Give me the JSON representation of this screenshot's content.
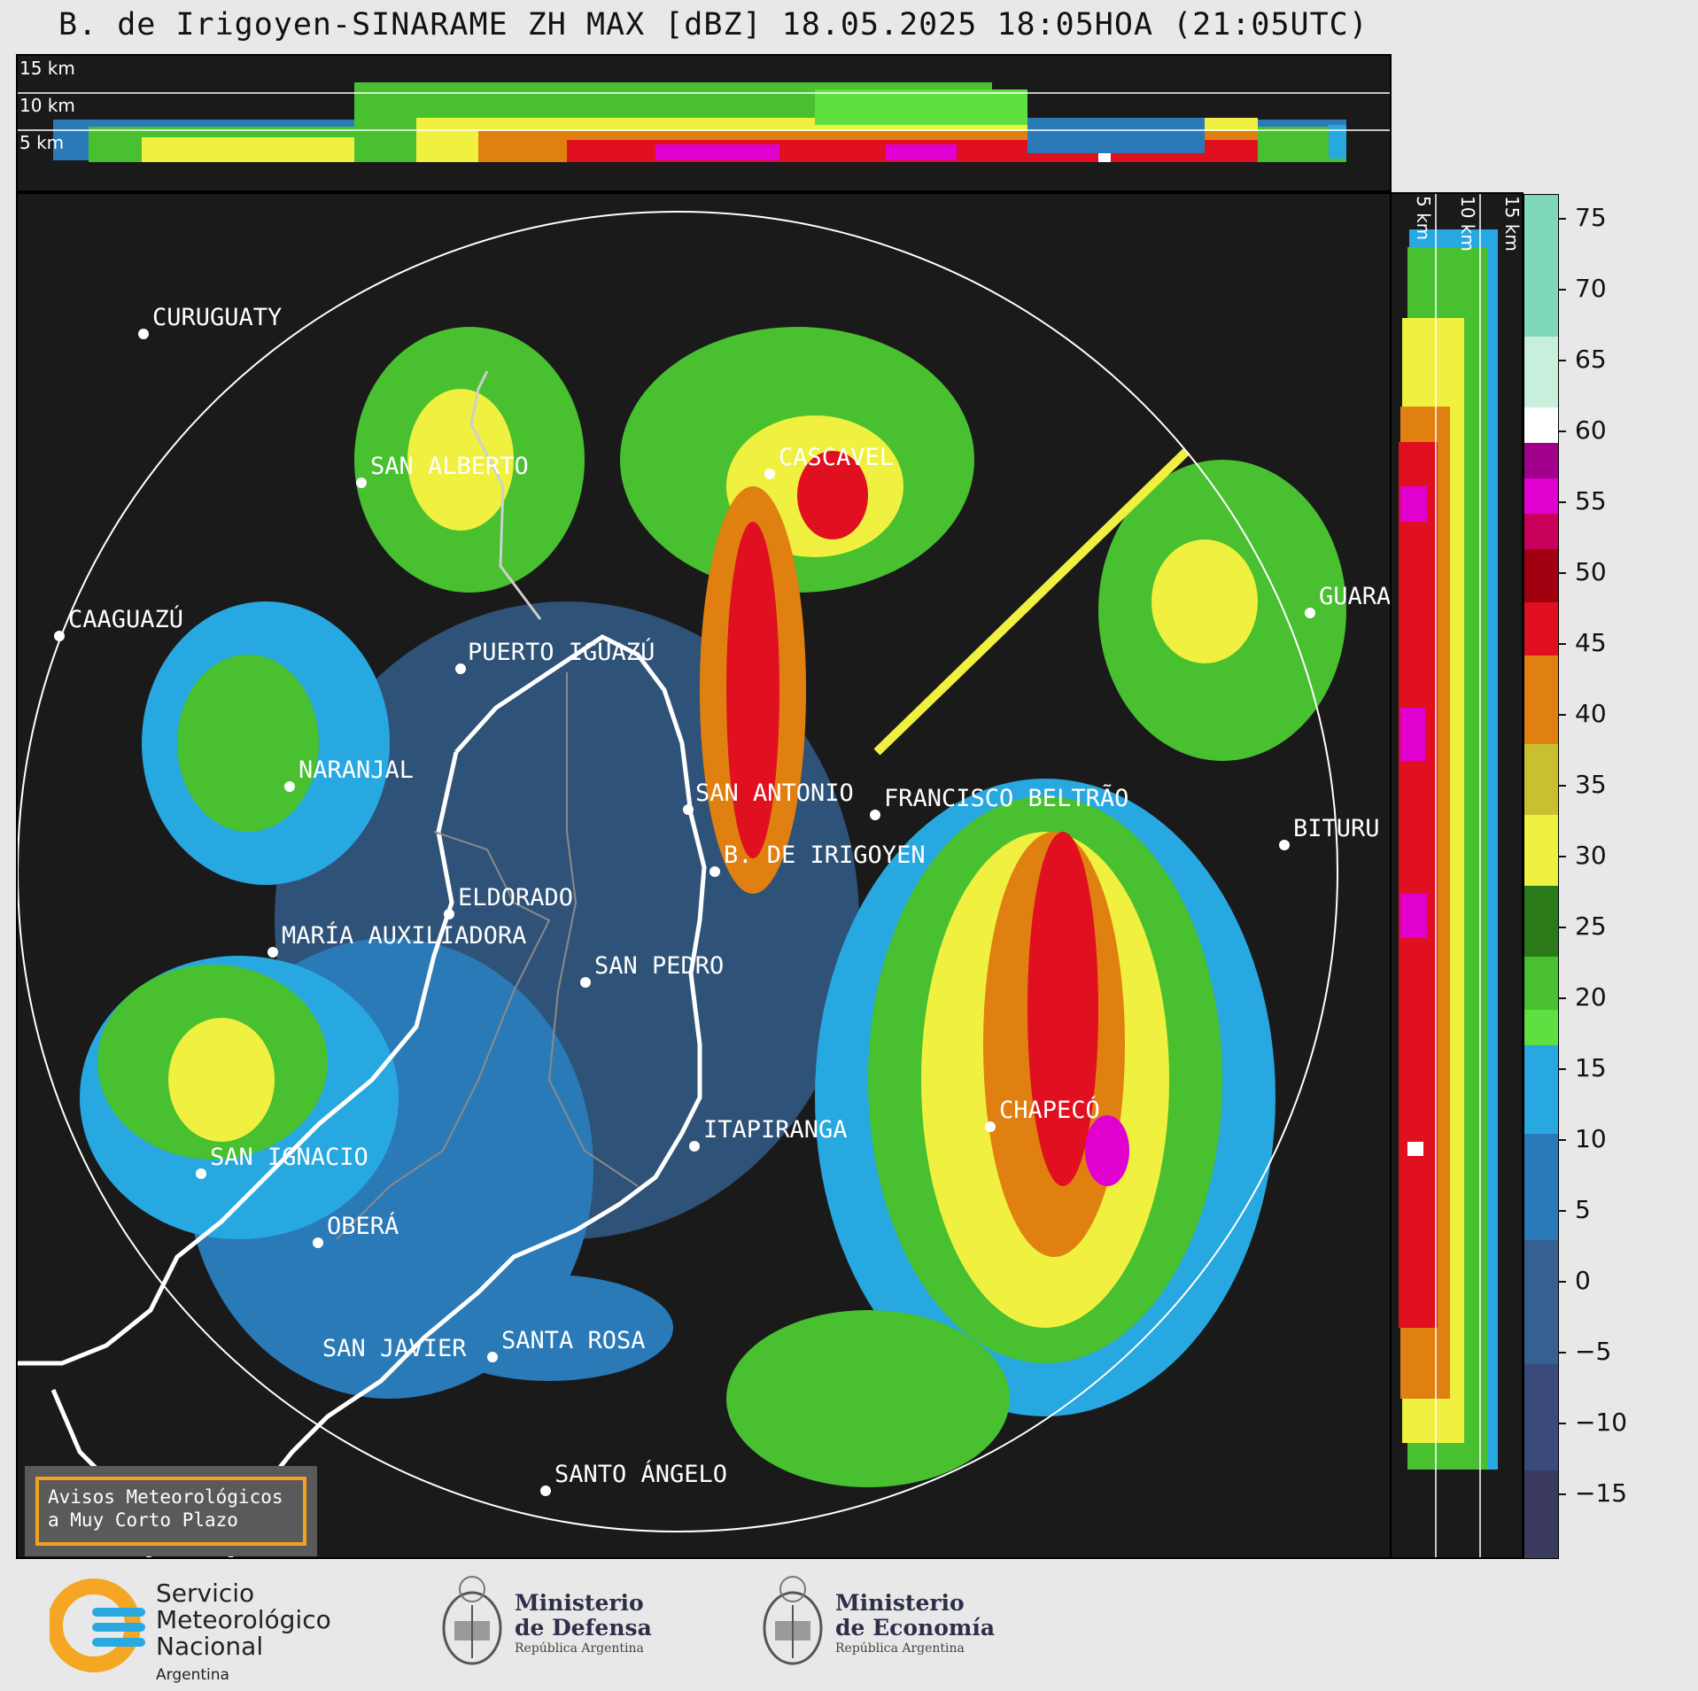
{
  "title": "B. de Irigoyen-SINARAME ZH MAX [dBZ] 18.05.2025 18:05HOA (21:05UTC)",
  "height_labels": {
    "h15": "15 km",
    "h10": "10 km",
    "h5": "5 km"
  },
  "colorbar": {
    "ticks": [
      "75",
      "70",
      "65",
      "60",
      "55",
      "50",
      "45",
      "40",
      "35",
      "30",
      "25",
      "20",
      "15",
      "10",
      "5",
      "0",
      "−5",
      "−10",
      "−15"
    ],
    "colors": {
      "c75": "#7fd8b8",
      "c65": "#c8eedc",
      "c60": "#ffffff",
      "c55": "#a0008a",
      "c52": "#e000d0",
      "c50": "#c8005a",
      "c48": "#a00010",
      "c45": "#e01020",
      "c40": "#e08010",
      "c35": "#c8c030",
      "c30": "#f0f040",
      "c28": "#2a7a1a",
      "c22": "#48c030",
      "c20": "#60e040",
      "c18": "#28a8e0",
      "c10": "#2a7ab8",
      "c0": "#356090",
      "cm10": "#3a4a7a",
      "cm15": "#3a3a60"
    }
  },
  "cities": [
    {
      "name": "CURUGUATY"
    },
    {
      "name": "SAN ALBERTO"
    },
    {
      "name": "CASCAVEL"
    },
    {
      "name": "CAAGUAZÚ"
    },
    {
      "name": "GUARA"
    },
    {
      "name": "PUERTO IGUAZÚ"
    },
    {
      "name": "NARANJAL"
    },
    {
      "name": "SAN ANTONIO"
    },
    {
      "name": "FRANCISCO BELTRÃO"
    },
    {
      "name": "B. DE IRIGOYEN"
    },
    {
      "name": "BITURU"
    },
    {
      "name": "ELDORADO"
    },
    {
      "name": "MARÍA AUXILIADORA"
    },
    {
      "name": "SAN PEDRO"
    },
    {
      "name": "CHAPECÓ"
    },
    {
      "name": "ITAPIRANGA"
    },
    {
      "name": "SAN IGNACIO"
    },
    {
      "name": "OBERÁ"
    },
    {
      "name": "SAN JAVIER"
    },
    {
      "name": "SANTA ROSA"
    },
    {
      "name": "SANTO ÁNGELO"
    }
  ],
  "notice": {
    "line1": "Avisos Meteorológicos",
    "line2": "a Muy Corto Plazo"
  },
  "logos": {
    "smn": {
      "line1": "Servicio",
      "line2": "Meteorológico",
      "line3": "Nacional",
      "line4": "Argentina"
    },
    "defensa": {
      "line1": "Ministerio",
      "line2": "de Defensa",
      "line3": "República Argentina"
    },
    "economia": {
      "line1": "Ministerio",
      "line2": "de Economía",
      "line3": "República Argentina"
    }
  }
}
